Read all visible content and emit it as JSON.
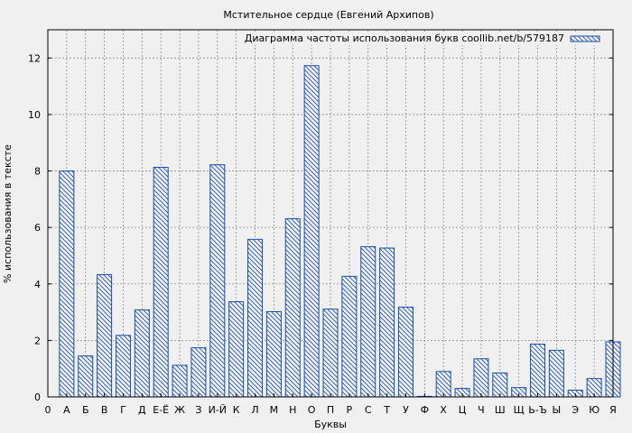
{
  "chart_data": {
    "type": "bar",
    "title": "Мстительное сердце (Евгений Архипов)",
    "xlabel": "Буквы",
    "ylabel": "% использования в тексте",
    "legend": {
      "label": "Диаграмма частоты использования букв coollib.net/b/579187",
      "placement": "top-right"
    },
    "ylim": [
      0,
      13
    ],
    "yticks": [
      "0",
      "2",
      "4",
      "6",
      "8",
      "10",
      "12"
    ],
    "grid": true,
    "x_origin_label": "0",
    "categories": [
      "А",
      "Б",
      "В",
      "Г",
      "Д",
      "Е-Ё",
      "Ж",
      "З",
      "И-Й",
      "К",
      "Л",
      "М",
      "Н",
      "О",
      "П",
      "Р",
      "С",
      "Т",
      "У",
      "Ф",
      "Х",
      "Ц",
      "Ч",
      "Ш",
      "Щ",
      "Ь-Ъ",
      "Ы",
      "Э",
      "Ю",
      "Я"
    ],
    "values": [
      8.0,
      1.45,
      4.33,
      2.18,
      3.08,
      8.13,
      1.12,
      1.74,
      8.22,
      3.37,
      5.58,
      3.02,
      6.31,
      11.73,
      3.11,
      4.27,
      5.32,
      5.27,
      3.18,
      0.02,
      0.9,
      0.3,
      1.35,
      0.85,
      0.33,
      1.87,
      1.65,
      0.24,
      0.65,
      1.95
    ],
    "colors": {
      "bar_stroke": "#1a4ea8",
      "hatch": "#1a4ea8",
      "grid": "#8c8c8c",
      "plot_bg": "#f0f0f0"
    }
  }
}
